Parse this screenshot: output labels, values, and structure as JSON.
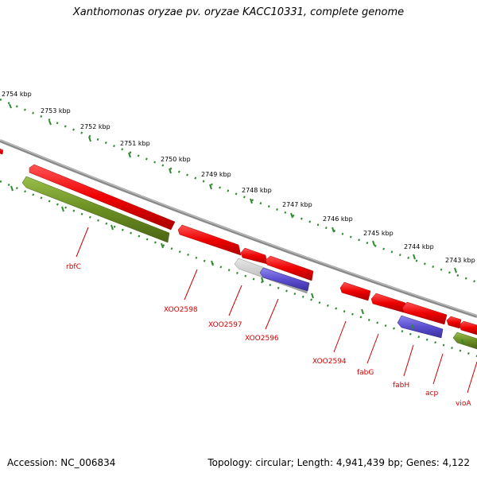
{
  "title": "Xanthomonas oryzae pv. oryzae KACC10331, complete genome",
  "footer": {
    "accession": "Accession: NC_006834",
    "summary": "Topology: circular; Length: 4,941,439 bp; Genes: 4,122"
  },
  "kbp_labels": [
    "2754 kbp",
    "2753 kbp",
    "2752 kbp",
    "2751 kbp",
    "2750 kbp",
    "2749 kbp",
    "2748 kbp",
    "2747 kbp",
    "2746 kbp",
    "2745 kbp",
    "2744 kbp",
    "2743 kbp"
  ],
  "gene_labels": [
    "rbfC",
    "XOO2598",
    "XOO2597",
    "XOO2596",
    "XOO2594",
    "fabG",
    "fabH",
    "acp",
    "vioA"
  ],
  "colors": {
    "gene_red": "#ff0000",
    "gene_green": "#6b8e23",
    "gene_blue": "#5b4fd0",
    "gene_gray": "#c0c0c0",
    "backbone": "#888888",
    "ticks": "#2e8b2e",
    "label_red": "#cc0000"
  }
}
